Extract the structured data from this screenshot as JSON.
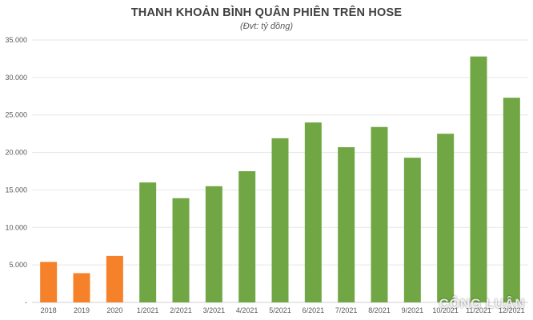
{
  "chart_data": {
    "type": "bar",
    "title": "THANH KHOẢN BÌNH QUÂN PHIÊN TRÊN HOSE",
    "subtitle": "(Đvt: tỷ đồng)",
    "categories": [
      "2018",
      "2019",
      "2020",
      "1/2021",
      "2/2021",
      "3/2021",
      "4/2021",
      "5/2021",
      "6/2021",
      "7/2021",
      "8/2021",
      "9/2021",
      "10/2021",
      "11/2021",
      "12/2021"
    ],
    "values": [
      5400,
      3900,
      6200,
      16000,
      13900,
      15500,
      17500,
      21900,
      24000,
      20700,
      23400,
      19300,
      22500,
      32800,
      27300
    ],
    "colors": [
      "#F5822A",
      "#F5822A",
      "#F5822A",
      "#70A744",
      "#70A744",
      "#70A744",
      "#70A744",
      "#70A744",
      "#70A744",
      "#70A744",
      "#70A744",
      "#70A744",
      "#70A744",
      "#70A744",
      "#70A744"
    ],
    "ylim": [
      0,
      35000
    ],
    "yticks": [
      "-",
      "5.000",
      "10.000",
      "15.000",
      "20.000",
      "25.000",
      "30.000",
      "35.000"
    ],
    "grid": true,
    "xlabel": "",
    "ylabel": ""
  },
  "watermark": "CÔNG LUẬN"
}
